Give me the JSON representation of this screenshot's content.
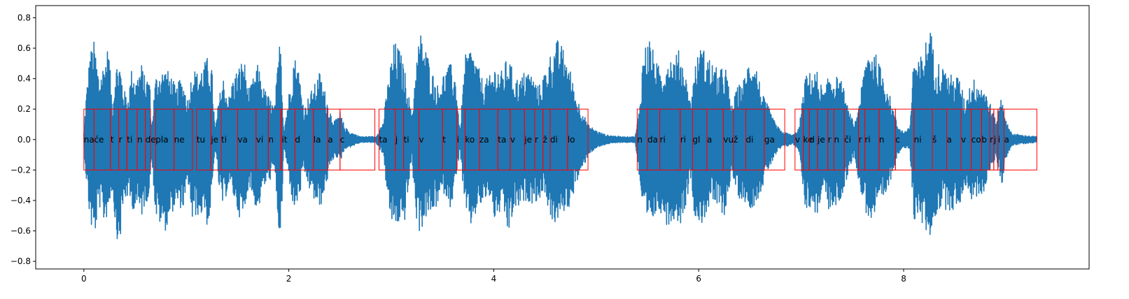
{
  "chart_data": {
    "type": "line",
    "title": "",
    "xlabel": "",
    "ylabel": "",
    "xlim": [
      -0.47,
      9.81
    ],
    "ylim": [
      -0.85,
      0.88
    ],
    "xticks": [
      0,
      2,
      4,
      6,
      8
    ],
    "xtick_labels": [
      "0",
      "2",
      "4",
      "6",
      "8"
    ],
    "yticks": [
      -0.8,
      -0.6,
      -0.4,
      -0.2,
      0.0,
      0.2,
      0.4,
      0.6,
      0.8
    ],
    "ytick_labels": [
      "−0.8",
      "−0.6",
      "−0.4",
      "−0.2",
      "0.0",
      "0.2",
      "0.4",
      "0.6",
      "0.8"
    ],
    "grid": false,
    "waveform": {
      "color": "#1f77b4",
      "duration": 9.3,
      "envelope": [
        [
          0.0,
          0.05,
          0.05
        ],
        [
          0.02,
          0.28,
          0.24
        ],
        [
          0.06,
          0.58,
          0.55
        ],
        [
          0.1,
          0.65,
          0.67
        ],
        [
          0.15,
          0.42,
          0.44
        ],
        [
          0.2,
          0.52,
          0.56
        ],
        [
          0.24,
          0.63,
          0.48
        ],
        [
          0.28,
          0.22,
          0.32
        ],
        [
          0.31,
          0.5,
          0.62
        ],
        [
          0.35,
          0.52,
          0.7
        ],
        [
          0.39,
          0.33,
          0.42
        ],
        [
          0.43,
          0.28,
          0.38
        ],
        [
          0.47,
          0.49,
          0.46
        ],
        [
          0.51,
          0.4,
          0.45
        ],
        [
          0.56,
          0.51,
          0.52
        ],
        [
          0.6,
          0.4,
          0.42
        ],
        [
          0.64,
          0.44,
          0.38
        ],
        [
          0.66,
          0.08,
          0.08
        ],
        [
          0.7,
          0.42,
          0.52
        ],
        [
          0.74,
          0.46,
          0.56
        ],
        [
          0.8,
          0.47,
          0.6
        ],
        [
          0.86,
          0.42,
          0.48
        ],
        [
          0.9,
          0.33,
          0.45
        ],
        [
          0.94,
          0.41,
          0.45
        ],
        [
          0.98,
          0.37,
          0.46
        ],
        [
          1.02,
          0.25,
          0.3
        ],
        [
          1.06,
          0.5,
          0.57
        ],
        [
          1.1,
          0.44,
          0.49
        ],
        [
          1.14,
          0.48,
          0.52
        ],
        [
          1.17,
          0.5,
          0.45
        ],
        [
          1.21,
          0.55,
          0.6
        ],
        [
          1.25,
          0.47,
          0.4
        ],
        [
          1.28,
          0.06,
          0.06
        ],
        [
          1.32,
          0.28,
          0.33
        ],
        [
          1.36,
          0.42,
          0.46
        ],
        [
          1.41,
          0.27,
          0.3
        ],
        [
          1.46,
          0.42,
          0.38
        ],
        [
          1.51,
          0.48,
          0.5
        ],
        [
          1.56,
          0.55,
          0.55
        ],
        [
          1.61,
          0.32,
          0.28
        ],
        [
          1.65,
          0.4,
          0.4
        ],
        [
          1.7,
          0.5,
          0.48
        ],
        [
          1.75,
          0.35,
          0.32
        ],
        [
          1.81,
          0.28,
          0.28
        ],
        [
          1.86,
          0.22,
          0.2
        ],
        [
          1.92,
          0.73,
          0.78
        ],
        [
          1.95,
          0.06,
          0.05
        ],
        [
          2.0,
          0.3,
          0.25
        ],
        [
          2.05,
          0.57,
          0.48
        ],
        [
          2.1,
          0.46,
          0.4
        ],
        [
          2.15,
          0.2,
          0.22
        ],
        [
          2.2,
          0.3,
          0.33
        ],
        [
          2.25,
          0.36,
          0.41
        ],
        [
          2.3,
          0.45,
          0.47
        ],
        [
          2.35,
          0.33,
          0.35
        ],
        [
          2.4,
          0.2,
          0.2
        ],
        [
          2.45,
          0.12,
          0.1
        ],
        [
          2.5,
          0.18,
          0.15
        ],
        [
          2.55,
          0.08,
          0.06
        ],
        [
          2.6,
          0.05,
          0.05
        ],
        [
          2.7,
          0.02,
          0.02
        ],
        [
          2.85,
          0.02,
          0.02
        ],
        [
          2.92,
          0.12,
          0.1
        ],
        [
          2.98,
          0.45,
          0.5
        ],
        [
          3.03,
          0.65,
          0.6
        ],
        [
          3.08,
          0.6,
          0.55
        ],
        [
          3.12,
          0.5,
          0.6
        ],
        [
          3.16,
          0.35,
          0.38
        ],
        [
          3.2,
          0.15,
          0.12
        ],
        [
          3.24,
          0.5,
          0.52
        ],
        [
          3.28,
          0.72,
          0.62
        ],
        [
          3.34,
          0.6,
          0.52
        ],
        [
          3.4,
          0.45,
          0.5
        ],
        [
          3.46,
          0.35,
          0.42
        ],
        [
          3.52,
          0.46,
          0.35
        ],
        [
          3.58,
          0.5,
          0.45
        ],
        [
          3.63,
          0.42,
          0.3
        ],
        [
          3.67,
          0.06,
          0.06
        ],
        [
          3.72,
          0.55,
          0.5
        ],
        [
          3.78,
          0.62,
          0.58
        ],
        [
          3.84,
          0.5,
          0.47
        ],
        [
          3.9,
          0.38,
          0.42
        ],
        [
          3.96,
          0.42,
          0.38
        ],
        [
          4.02,
          0.5,
          0.57
        ],
        [
          4.08,
          0.45,
          0.44
        ],
        [
          4.14,
          0.56,
          0.64
        ],
        [
          4.2,
          0.42,
          0.47
        ],
        [
          4.26,
          0.4,
          0.45
        ],
        [
          4.32,
          0.48,
          0.4
        ],
        [
          4.38,
          0.42,
          0.42
        ],
        [
          4.44,
          0.35,
          0.4
        ],
        [
          4.5,
          0.46,
          0.35
        ],
        [
          4.56,
          0.58,
          0.55
        ],
        [
          4.62,
          0.66,
          0.56
        ],
        [
          4.68,
          0.6,
          0.48
        ],
        [
          4.74,
          0.48,
          0.45
        ],
        [
          4.8,
          0.3,
          0.3
        ],
        [
          4.86,
          0.2,
          0.22
        ],
        [
          4.92,
          0.1,
          0.1
        ],
        [
          5.0,
          0.06,
          0.06
        ],
        [
          5.1,
          0.03,
          0.03
        ],
        [
          5.25,
          0.02,
          0.02
        ],
        [
          5.38,
          0.02,
          0.02
        ],
        [
          5.42,
          0.2,
          0.25
        ],
        [
          5.46,
          0.6,
          0.55
        ],
        [
          5.52,
          0.68,
          0.6
        ],
        [
          5.58,
          0.52,
          0.5
        ],
        [
          5.64,
          0.45,
          0.48
        ],
        [
          5.7,
          0.56,
          0.58
        ],
        [
          5.76,
          0.55,
          0.52
        ],
        [
          5.82,
          0.6,
          0.56
        ],
        [
          5.88,
          0.4,
          0.42
        ],
        [
          5.92,
          0.25,
          0.25
        ],
        [
          5.96,
          0.48,
          0.5
        ],
        [
          6.02,
          0.62,
          0.58
        ],
        [
          6.08,
          0.57,
          0.48
        ],
        [
          6.14,
          0.5,
          0.42
        ],
        [
          6.2,
          0.45,
          0.48
        ],
        [
          6.26,
          0.5,
          0.5
        ],
        [
          6.32,
          0.22,
          0.22
        ],
        [
          6.38,
          0.35,
          0.38
        ],
        [
          6.44,
          0.4,
          0.4
        ],
        [
          6.5,
          0.56,
          0.46
        ],
        [
          6.56,
          0.5,
          0.42
        ],
        [
          6.62,
          0.3,
          0.32
        ],
        [
          6.68,
          0.22,
          0.2
        ],
        [
          6.74,
          0.12,
          0.12
        ],
        [
          6.8,
          0.06,
          0.06
        ],
        [
          6.92,
          0.03,
          0.03
        ],
        [
          6.98,
          0.08,
          0.08
        ],
        [
          7.04,
          0.42,
          0.45
        ],
        [
          7.1,
          0.45,
          0.46
        ],
        [
          7.16,
          0.45,
          0.5
        ],
        [
          7.22,
          0.3,
          0.32
        ],
        [
          7.28,
          0.45,
          0.5
        ],
        [
          7.34,
          0.42,
          0.45
        ],
        [
          7.4,
          0.38,
          0.38
        ],
        [
          7.46,
          0.2,
          0.22
        ],
        [
          7.52,
          0.1,
          0.1
        ],
        [
          7.58,
          0.3,
          0.35
        ],
        [
          7.64,
          0.6,
          0.5
        ],
        [
          7.7,
          0.62,
          0.55
        ],
        [
          7.76,
          0.5,
          0.45
        ],
        [
          7.82,
          0.42,
          0.4
        ],
        [
          7.88,
          0.25,
          0.25
        ],
        [
          7.94,
          0.1,
          0.1
        ],
        [
          8.0,
          0.05,
          0.05
        ],
        [
          8.06,
          0.08,
          0.08
        ],
        [
          8.1,
          0.6,
          0.55
        ],
        [
          8.14,
          0.5,
          0.48
        ],
        [
          8.2,
          0.62,
          0.6
        ],
        [
          8.26,
          0.75,
          0.65
        ],
        [
          8.3,
          0.55,
          0.52
        ],
        [
          8.36,
          0.5,
          0.46
        ],
        [
          8.42,
          0.45,
          0.46
        ],
        [
          8.48,
          0.42,
          0.47
        ],
        [
          8.54,
          0.42,
          0.45
        ],
        [
          8.6,
          0.25,
          0.3
        ],
        [
          8.66,
          0.4,
          0.4
        ],
        [
          8.72,
          0.4,
          0.38
        ],
        [
          8.78,
          0.36,
          0.35
        ],
        [
          8.84,
          0.25,
          0.22
        ],
        [
          8.9,
          0.12,
          0.12
        ],
        [
          8.96,
          0.32,
          0.3
        ],
        [
          9.0,
          0.12,
          0.12
        ],
        [
          9.06,
          0.04,
          0.04
        ],
        [
          9.15,
          0.03,
          0.03
        ],
        [
          9.3,
          0.02,
          0.02
        ]
      ]
    },
    "segments": {
      "color": "#ff0000",
      "y_low": -0.2,
      "y_high": 0.2,
      "items": [
        {
          "label": "na",
          "x0": 0.0,
          "x1": 0.1
        },
        {
          "label": "će",
          "x0": 0.1,
          "x1": 0.26
        },
        {
          "label": "t",
          "x0": 0.26,
          "x1": 0.34
        },
        {
          "label": "r",
          "x0": 0.34,
          "x1": 0.42
        },
        {
          "label": "ti",
          "x0": 0.42,
          "x1": 0.52
        },
        {
          "label": "n",
          "x0": 0.52,
          "x1": 0.6
        },
        {
          "label": "de",
          "x0": 0.6,
          "x1": 0.65
        },
        {
          "label": "pla",
          "x0": 0.7,
          "x1": 0.88
        },
        {
          "label": "ne",
          "x0": 0.88,
          "x1": 1.06
        },
        {
          "label": "tu",
          "x0": 1.1,
          "x1": 1.24
        },
        {
          "label": "je",
          "x0": 1.24,
          "x1": 1.34
        },
        {
          "label": "ti",
          "x0": 1.34,
          "x1": 1.5
        },
        {
          "label": "va",
          "x0": 1.5,
          "x1": 1.68
        },
        {
          "label": "vi",
          "x0": 1.68,
          "x1": 1.8
        },
        {
          "label": "n",
          "x0": 1.8,
          "x1": 1.92
        },
        {
          "label": "it",
          "x0": 1.93,
          "x1": 2.06
        },
        {
          "label": "d",
          "x0": 2.06,
          "x1": 2.24
        },
        {
          "label": "la",
          "x0": 2.24,
          "x1": 2.38
        },
        {
          "label": "a",
          "x0": 2.38,
          "x1": 2.5
        },
        {
          "label": "c",
          "x0": 2.5,
          "x1": 2.84
        },
        {
          "label": "ta",
          "x0": 2.88,
          "x1": 3.04
        },
        {
          "label": "j",
          "x0": 3.04,
          "x1": 3.12
        },
        {
          "label": "ti",
          "x0": 3.12,
          "x1": 3.27
        },
        {
          "label": "v",
          "x0": 3.27,
          "x1": 3.5
        },
        {
          "label": "t",
          "x0": 3.5,
          "x1": 3.64
        },
        {
          "label": "i",
          "x0": 3.64,
          "x1": 3.72
        },
        {
          "label": "ko",
          "x0": 3.72,
          "x1": 3.86
        },
        {
          "label": "za",
          "x0": 3.86,
          "x1": 4.04
        },
        {
          "label": "ta",
          "x0": 4.04,
          "x1": 4.16
        },
        {
          "label": "v",
          "x0": 4.16,
          "x1": 4.3
        },
        {
          "label": "je",
          "x0": 4.3,
          "x1": 4.4
        },
        {
          "label": "r",
          "x0": 4.4,
          "x1": 4.48
        },
        {
          "label": "ž",
          "x0": 4.48,
          "x1": 4.55
        },
        {
          "label": "di",
          "x0": 4.55,
          "x1": 4.72
        },
        {
          "label": "lo",
          "x0": 4.72,
          "x1": 4.92
        },
        {
          "label": "n",
          "x0": 5.4,
          "x1": 5.5
        },
        {
          "label": "da",
          "x0": 5.5,
          "x1": 5.62
        },
        {
          "label": "ri",
          "x0": 5.62,
          "x1": 5.82
        },
        {
          "label": "ri",
          "x0": 5.82,
          "x1": 5.94
        },
        {
          "label": "gl",
          "x0": 5.94,
          "x1": 6.08
        },
        {
          "label": "a",
          "x0": 6.08,
          "x1": 6.24
        },
        {
          "label": "vu",
          "x0": 6.24,
          "x1": 6.34
        },
        {
          "label": "ž",
          "x0": 6.34,
          "x1": 6.46
        },
        {
          "label": "di",
          "x0": 6.46,
          "x1": 6.64
        },
        {
          "label": "ga",
          "x0": 6.64,
          "x1": 6.84
        },
        {
          "label": "v",
          "x0": 6.94,
          "x1": 7.02
        },
        {
          "label": "ke",
          "x0": 7.02,
          "x1": 7.08
        },
        {
          "label": "d",
          "x0": 7.08,
          "x1": 7.16
        },
        {
          "label": "je",
          "x0": 7.16,
          "x1": 7.26
        },
        {
          "label": "r",
          "x0": 7.26,
          "x1": 7.32
        },
        {
          "label": "n",
          "x0": 7.32,
          "x1": 7.42
        },
        {
          "label": "či",
          "x0": 7.42,
          "x1": 7.56
        },
        {
          "label": "r",
          "x0": 7.56,
          "x1": 7.62
        },
        {
          "label": "ri",
          "x0": 7.62,
          "x1": 7.76
        },
        {
          "label": "n",
          "x0": 7.76,
          "x1": 7.92
        },
        {
          "label": "c",
          "x0": 7.92,
          "x1": 8.1
        },
        {
          "label": "ni",
          "x0": 8.1,
          "x1": 8.28
        },
        {
          "label": "š",
          "x0": 8.28,
          "x1": 8.42
        },
        {
          "label": "a",
          "x0": 8.42,
          "x1": 8.56
        },
        {
          "label": "v",
          "x0": 8.56,
          "x1": 8.66
        },
        {
          "label": "co",
          "x0": 8.66,
          "x1": 8.76
        },
        {
          "label": "b",
          "x0": 8.76,
          "x1": 8.84
        },
        {
          "label": "r",
          "x0": 8.84,
          "x1": 8.88
        },
        {
          "label": "j",
          "x0": 8.88,
          "x1": 8.92
        },
        {
          "label": "i",
          "x0": 8.92,
          "x1": 8.98
        },
        {
          "label": "a",
          "x0": 8.98,
          "x1": 9.3
        }
      ]
    }
  }
}
